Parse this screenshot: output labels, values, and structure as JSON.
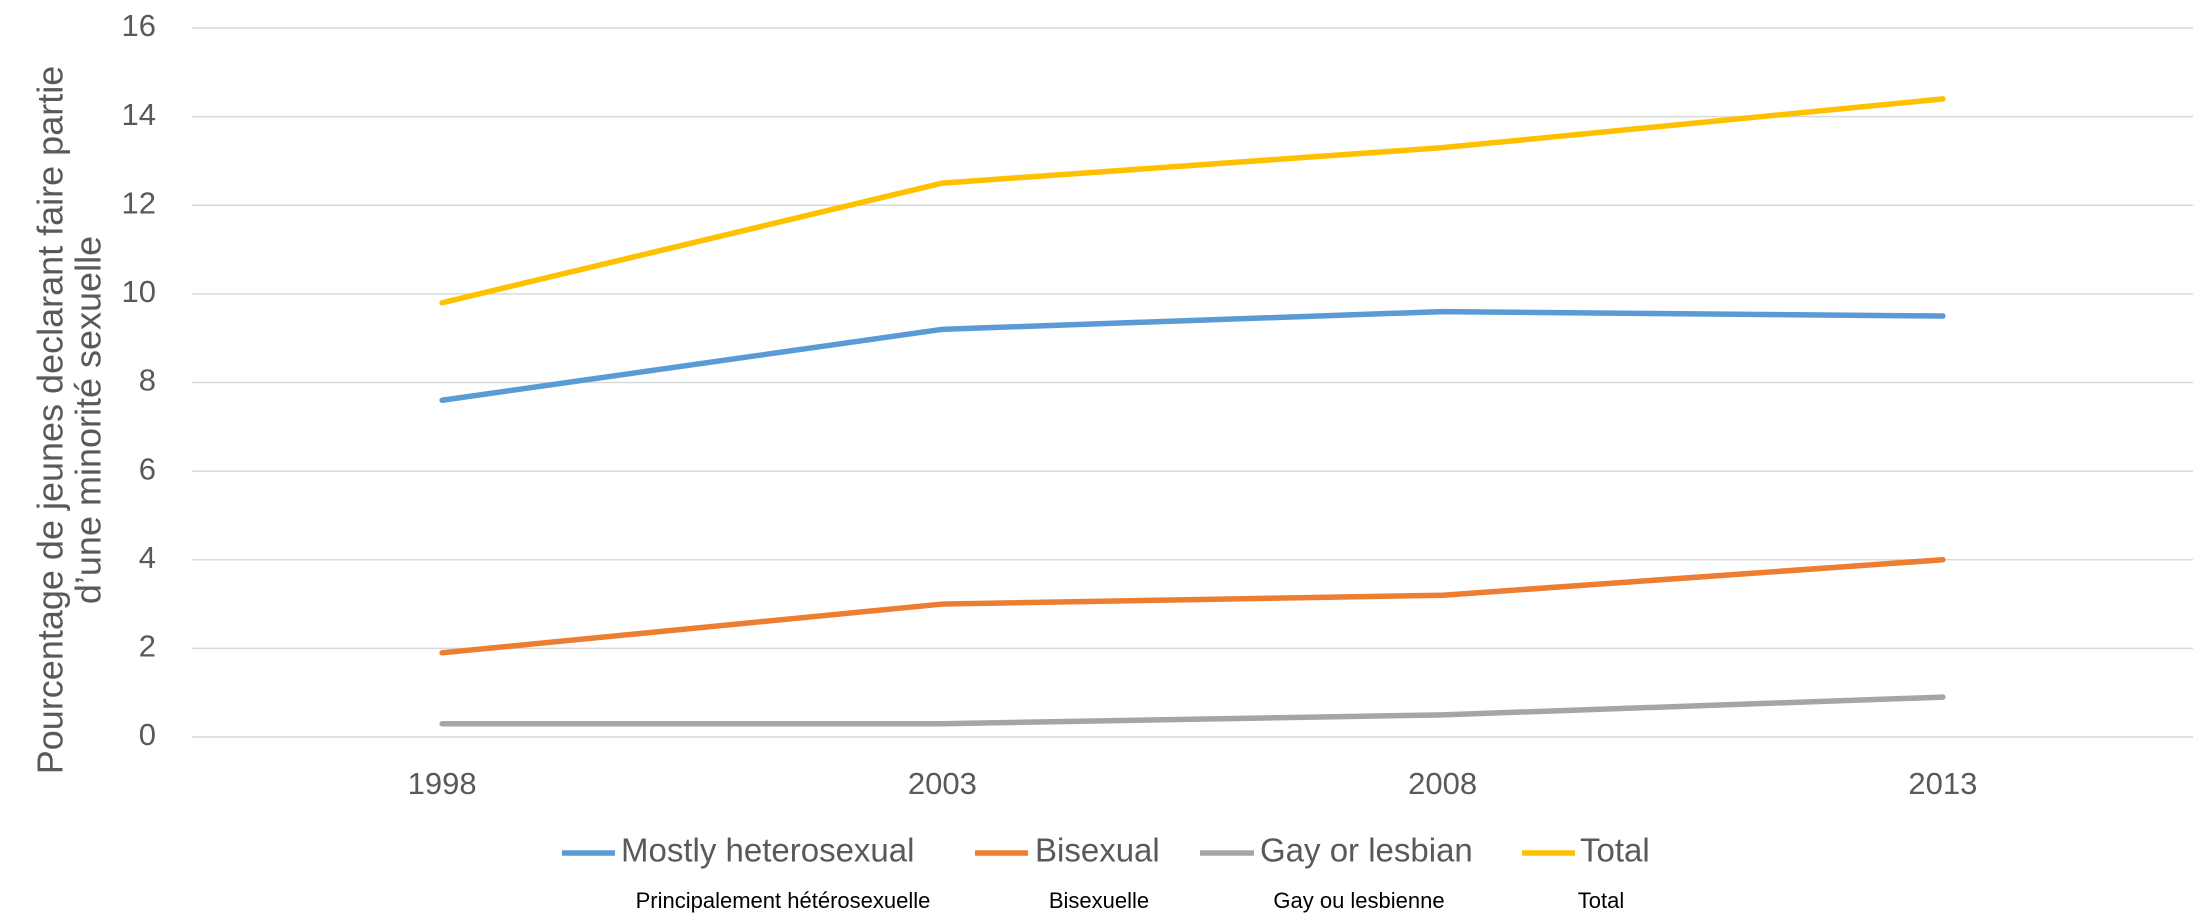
{
  "chart_data": {
    "type": "line",
    "y_label": [
      "Pourcentage de jeunes declarant faire partie",
      "d’une minorité sexuelle"
    ],
    "categories": [
      "1998",
      "2003",
      "2008",
      "2013"
    ],
    "series": [
      {
        "name": "Mostly heterosexual",
        "color": "#5b9bd5",
        "values": [
          7.6,
          9.2,
          9.6,
          9.5
        ]
      },
      {
        "name": "Bisexual",
        "color": "#ed7d31",
        "values": [
          1.9,
          3.0,
          3.2,
          4.0
        ]
      },
      {
        "name": "Gay or lesbian",
        "color": "#a5a5a5",
        "values": [
          0.3,
          0.3,
          0.5,
          0.9
        ]
      },
      {
        "name": "Total",
        "color": "#ffc000",
        "values": [
          9.8,
          12.5,
          13.3,
          14.4
        ]
      }
    ],
    "legend_translations": [
      "Principalement hétérosexuelle",
      "Bisexuelle",
      "Gay ou lesbienne",
      "Total"
    ],
    "ylim": [
      0,
      16
    ],
    "yticks": [
      0,
      2,
      4,
      6,
      8,
      10,
      12,
      14,
      16
    ],
    "grid": true,
    "legend": "bottom"
  }
}
